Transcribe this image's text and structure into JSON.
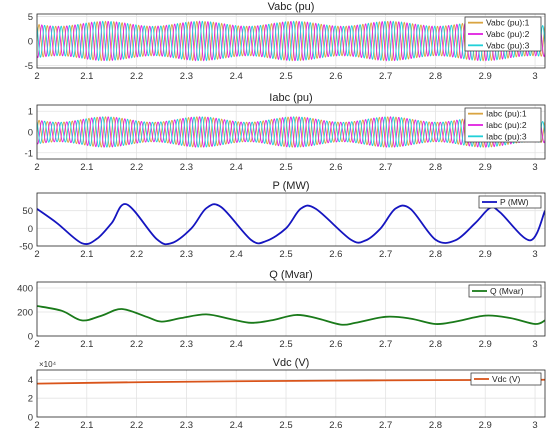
{
  "chart_data": [
    {
      "type": "line",
      "title": "Vabc (pu)",
      "xlim": [
        2,
        3.02
      ],
      "ylim": [
        -5.5,
        5.5
      ],
      "x_ticks": [
        2,
        2.1,
        2.2,
        2.3,
        2.4,
        2.5,
        2.6,
        2.7,
        2.8,
        2.9,
        3
      ],
      "x_tick_labels": [
        "2",
        "2.1",
        "2.2",
        "2.3",
        "2.4",
        "2.5",
        "2.6",
        "2.7",
        "2.8",
        "2.9",
        "3"
      ],
      "y_ticks": [
        -5,
        0,
        5
      ],
      "y_tick_labels": [
        "-5",
        "0",
        "5"
      ],
      "grid": true,
      "legend_position": "top-right",
      "series": [
        {
          "name": "Vabc (pu):1",
          "color": "#d9a441"
        },
        {
          "name": "Vabc (pu):2",
          "color": "#e020e0"
        },
        {
          "name": "Vabc (pu):3",
          "color": "#20d0d8"
        }
      ],
      "waveform": {
        "kind": "three-phase",
        "frequency_hz": 60,
        "base_amplitude": 3.5,
        "modulation_amplitude": 0.5,
        "modulation_period_s": 0.19
      }
    },
    {
      "type": "line",
      "title": "Iabc (pu)",
      "xlim": [
        2,
        3.02
      ],
      "ylim": [
        -1.3,
        1.3
      ],
      "x_ticks": [
        2,
        2.1,
        2.2,
        2.3,
        2.4,
        2.5,
        2.6,
        2.7,
        2.8,
        2.9,
        3
      ],
      "x_tick_labels": [
        "2",
        "2.1",
        "2.2",
        "2.3",
        "2.4",
        "2.5",
        "2.6",
        "2.7",
        "2.8",
        "2.9",
        "3"
      ],
      "y_ticks": [
        -1,
        0,
        1
      ],
      "y_tick_labels": [
        "-1",
        "0",
        "1"
      ],
      "grid": true,
      "legend_position": "top-right",
      "series": [
        {
          "name": "Iabc (pu):1",
          "color": "#d9a441"
        },
        {
          "name": "Iabc (pu):2",
          "color": "#e020e0"
        },
        {
          "name": "Iabc (pu):3",
          "color": "#20d0d8"
        }
      ],
      "waveform": {
        "kind": "three-phase",
        "frequency_hz": 60,
        "base_amplitude": 0.6,
        "modulation_amplitude": 0.13,
        "modulation_period_s": 0.19
      }
    },
    {
      "type": "line",
      "title": "P (MW)",
      "xlim": [
        2,
        3.02
      ],
      "ylim": [
        -50,
        100
      ],
      "x_ticks": [
        2,
        2.1,
        2.2,
        2.3,
        2.4,
        2.5,
        2.6,
        2.7,
        2.8,
        2.9,
        3
      ],
      "x_tick_labels": [
        "2",
        "2.1",
        "2.2",
        "2.3",
        "2.4",
        "2.5",
        "2.6",
        "2.7",
        "2.8",
        "2.9",
        "3"
      ],
      "y_ticks": [
        -50,
        0,
        50
      ],
      "y_tick_labels": [
        "-50",
        "0",
        "50"
      ],
      "grid": true,
      "legend_position": "top-right",
      "series": [
        {
          "name": "P (MW)",
          "color": "#1515c0",
          "x": [
            2.0,
            2.04,
            2.09,
            2.12,
            2.15,
            2.18,
            2.24,
            2.27,
            2.31,
            2.34,
            2.37,
            2.43,
            2.46,
            2.5,
            2.53,
            2.56,
            2.63,
            2.66,
            2.69,
            2.72,
            2.75,
            2.8,
            2.84,
            2.88,
            2.91,
            2.93,
            2.99,
            3.02
          ],
          "y": [
            55,
            15,
            -42,
            -30,
            15,
            68,
            -30,
            -42,
            0,
            57,
            60,
            -33,
            -36,
            0,
            56,
            55,
            -32,
            -34,
            0,
            56,
            55,
            -32,
            -34,
            15,
            58,
            45,
            -34,
            50
          ]
        }
      ]
    },
    {
      "type": "line",
      "title": "Q (Mvar)",
      "xlim": [
        2,
        3.02
      ],
      "ylim": [
        0,
        450
      ],
      "x_ticks": [
        2,
        2.1,
        2.2,
        2.3,
        2.4,
        2.5,
        2.6,
        2.7,
        2.8,
        2.9,
        3
      ],
      "x_tick_labels": [
        "2",
        "2.1",
        "2.2",
        "2.3",
        "2.4",
        "2.5",
        "2.6",
        "2.7",
        "2.8",
        "2.9",
        "3"
      ],
      "y_ticks": [
        0,
        200,
        400
      ],
      "y_tick_labels": [
        "0",
        "200",
        "400"
      ],
      "grid": true,
      "legend_position": "top-right",
      "series": [
        {
          "name": "Q (Mvar)",
          "color": "#1a7a1a",
          "x": [
            2.0,
            2.05,
            2.09,
            2.13,
            2.17,
            2.22,
            2.25,
            2.29,
            2.34,
            2.39,
            2.43,
            2.47,
            2.52,
            2.56,
            2.61,
            2.64,
            2.7,
            2.75,
            2.8,
            2.84,
            2.9,
            2.95,
            3.0,
            3.02
          ],
          "y": [
            250,
            210,
            130,
            170,
            225,
            160,
            120,
            150,
            180,
            140,
            110,
            130,
            175,
            150,
            95,
            110,
            160,
            145,
            100,
            120,
            170,
            150,
            100,
            130
          ]
        }
      ]
    },
    {
      "type": "line",
      "title": "Vdc (V)",
      "xlim": [
        2,
        3.02
      ],
      "ylim": [
        0,
        50000
      ],
      "x_ticks": [
        2,
        2.1,
        2.2,
        2.3,
        2.4,
        2.5,
        2.6,
        2.7,
        2.8,
        2.9,
        3
      ],
      "x_tick_labels": [
        "2",
        "2.1",
        "2.2",
        "2.3",
        "2.4",
        "2.5",
        "2.6",
        "2.7",
        "2.8",
        "2.9",
        "3"
      ],
      "y_ticks": [
        0,
        20000,
        40000
      ],
      "y_tick_labels": [
        "0",
        "2",
        "4"
      ],
      "y_exponent_label": "×10⁴",
      "grid": true,
      "legend_position": "top-right",
      "series": [
        {
          "name": "Vdc (V)",
          "color": "#d9541a",
          "x": [
            2.0,
            2.2,
            2.4,
            2.6,
            2.8,
            3.02
          ],
          "y": [
            35500,
            37000,
            38000,
            38700,
            39200,
            39600
          ]
        }
      ]
    }
  ]
}
